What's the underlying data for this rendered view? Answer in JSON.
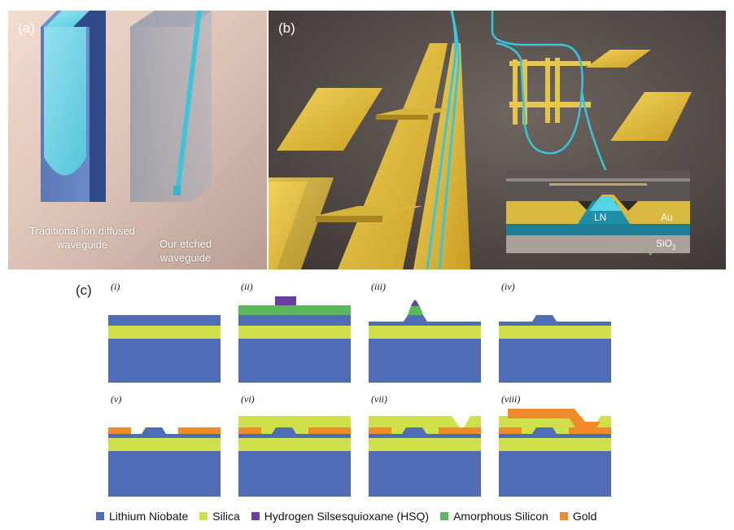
{
  "panel_a": {
    "label": "(a)",
    "caption_traditional": [
      "Traditional ion diffused",
      "waveguide"
    ],
    "caption_etched": [
      "Our etched",
      "waveguide"
    ]
  },
  "panel_b": {
    "label": "(b)",
    "inset": {
      "ln": "LN",
      "au": "Au",
      "sio2": "SiO",
      "sio2_sub": "2"
    }
  },
  "panel_c": {
    "label": "(c)",
    "steps": [
      "(i)",
      "(ii)",
      "(iii)",
      "(iv)",
      "(v)",
      "(vi)",
      "(vii)",
      "(viii)"
    ]
  },
  "legend": [
    {
      "label": "Lithium Niobate",
      "color": "#4f6cb7"
    },
    {
      "label": "Silica",
      "color": "#cfe04a"
    },
    {
      "label": "Hydrogen Silsesquioxane (HSQ)",
      "color": "#6a3fa0"
    },
    {
      "label": "Amorphous Silicon",
      "color": "#5cb85c"
    },
    {
      "label": "Gold",
      "color": "#f08a2c"
    }
  ],
  "colors": {
    "lithium_niobate": "#4f6cb7",
    "silica": "#cfe04a",
    "hsq": "#6a3fa0",
    "amorphous_silicon": "#5cb85c",
    "gold": "#f08a2c",
    "render_gold": "#e5c13b",
    "waveguide_cyan": "#36c6e0"
  }
}
